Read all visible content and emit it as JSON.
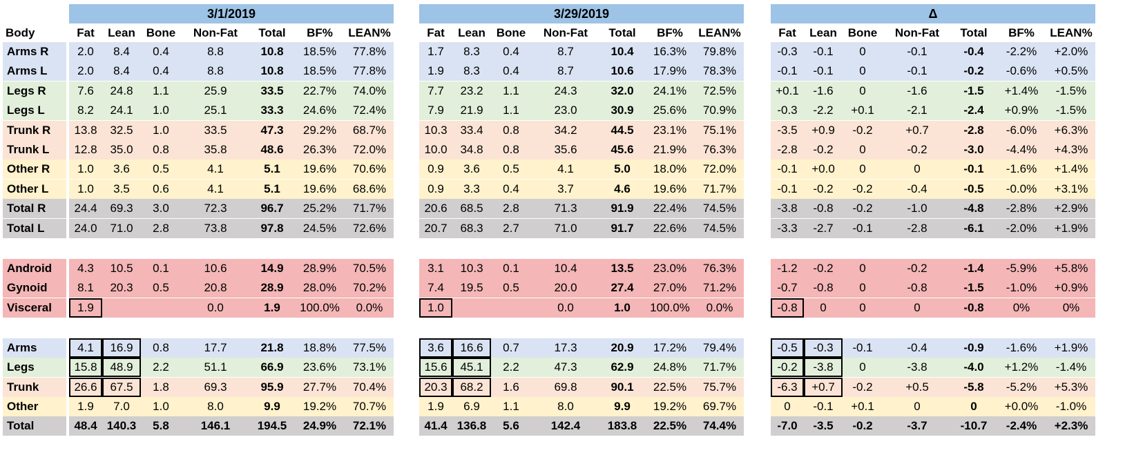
{
  "blocks": [
    {
      "title": "3/1/2019",
      "key": "d1"
    },
    {
      "title": "3/29/2019",
      "key": "d2"
    },
    {
      "title": "Δ",
      "key": "dd"
    }
  ],
  "body_label": "Body",
  "col_headers": [
    "Fat",
    "Lean",
    "Bone",
    "Non-Fat",
    "Total",
    "BF%",
    "LEAN%"
  ],
  "colors": {
    "header": "#9dc3e6",
    "arms": "#dae3f3",
    "legs": "#e2efda",
    "trunk": "#fbe4d5",
    "other": "#fff2cc",
    "total": "#d0cece",
    "red": "#f4b6b6"
  },
  "rows": [
    {
      "label": "Arms R",
      "color": "arms",
      "d1": [
        "2.0",
        "8.4",
        "0.4",
        "8.8",
        "10.8",
        "18.5%",
        "77.8%"
      ],
      "d2": [
        "1.7",
        "8.3",
        "0.4",
        "8.7",
        "10.4",
        "16.3%",
        "79.8%"
      ],
      "dd": [
        "-0.3",
        "-0.1",
        "0",
        "-0.1",
        "-0.4",
        "-2.2%",
        "+2.0%"
      ]
    },
    {
      "label": "Arms L",
      "color": "arms",
      "d1": [
        "2.0",
        "8.4",
        "0.4",
        "8.8",
        "10.8",
        "18.5%",
        "77.8%"
      ],
      "d2": [
        "1.9",
        "8.3",
        "0.4",
        "8.7",
        "10.6",
        "17.9%",
        "78.3%"
      ],
      "dd": [
        "-0.1",
        "-0.1",
        "0",
        "-0.1",
        "-0.2",
        "-0.6%",
        "+0.5%"
      ]
    },
    {
      "label": "Legs R",
      "color": "legs",
      "d1": [
        "7.6",
        "24.8",
        "1.1",
        "25.9",
        "33.5",
        "22.7%",
        "74.0%"
      ],
      "d2": [
        "7.7",
        "23.2",
        "1.1",
        "24.3",
        "32.0",
        "24.1%",
        "72.5%"
      ],
      "dd": [
        "+0.1",
        "-1.6",
        "0",
        "-1.6",
        "-1.5",
        "+1.4%",
        "-1.5%"
      ]
    },
    {
      "label": "Legs L",
      "color": "legs",
      "d1": [
        "8.2",
        "24.1",
        "1.0",
        "25.1",
        "33.3",
        "24.6%",
        "72.4%"
      ],
      "d2": [
        "7.9",
        "21.9",
        "1.1",
        "23.0",
        "30.9",
        "25.6%",
        "70.9%"
      ],
      "dd": [
        "-0.3",
        "-2.2",
        "+0.1",
        "-2.1",
        "-2.4",
        "+0.9%",
        "-1.5%"
      ]
    },
    {
      "label": "Trunk R",
      "color": "trunk",
      "d1": [
        "13.8",
        "32.5",
        "1.0",
        "33.5",
        "47.3",
        "29.2%",
        "68.7%"
      ],
      "d2": [
        "10.3",
        "33.4",
        "0.8",
        "34.2",
        "44.5",
        "23.1%",
        "75.1%"
      ],
      "dd": [
        "-3.5",
        "+0.9",
        "-0.2",
        "+0.7",
        "-2.8",
        "-6.0%",
        "+6.3%"
      ]
    },
    {
      "label": "Trunk L",
      "color": "trunk",
      "d1": [
        "12.8",
        "35.0",
        "0.8",
        "35.8",
        "48.6",
        "26.3%",
        "72.0%"
      ],
      "d2": [
        "10.0",
        "34.8",
        "0.8",
        "35.6",
        "45.6",
        "21.9%",
        "76.3%"
      ],
      "dd": [
        "-2.8",
        "-0.2",
        "0",
        "-0.2",
        "-3.0",
        "-4.4%",
        "+4.3%"
      ]
    },
    {
      "label": "Other R",
      "color": "other",
      "d1": [
        "1.0",
        "3.6",
        "0.5",
        "4.1",
        "5.1",
        "19.6%",
        "70.6%"
      ],
      "d2": [
        "0.9",
        "3.6",
        "0.5",
        "4.1",
        "5.0",
        "18.0%",
        "72.0%"
      ],
      "dd": [
        "-0.1",
        "+0.0",
        "0",
        "0",
        "-0.1",
        "-1.6%",
        "+1.4%"
      ]
    },
    {
      "label": "Other L",
      "color": "other",
      "d1": [
        "1.0",
        "3.5",
        "0.6",
        "4.1",
        "5.1",
        "19.6%",
        "68.6%"
      ],
      "d2": [
        "0.9",
        "3.3",
        "0.4",
        "3.7",
        "4.6",
        "19.6%",
        "71.7%"
      ],
      "dd": [
        "-0.1",
        "-0.2",
        "-0.2",
        "-0.4",
        "-0.5",
        "-0.0%",
        "+3.1%"
      ]
    },
    {
      "label": "Total R",
      "color": "total",
      "d1": [
        "24.4",
        "69.3",
        "3.0",
        "72.3",
        "96.7",
        "25.2%",
        "71.7%"
      ],
      "d2": [
        "20.6",
        "68.5",
        "2.8",
        "71.3",
        "91.9",
        "22.4%",
        "74.5%"
      ],
      "dd": [
        "-3.8",
        "-0.8",
        "-0.2",
        "-1.0",
        "-4.8",
        "-2.8%",
        "+2.9%"
      ]
    },
    {
      "label": "Total L",
      "color": "total",
      "d1": [
        "24.0",
        "71.0",
        "2.8",
        "73.8",
        "97.8",
        "24.5%",
        "72.6%"
      ],
      "d2": [
        "20.7",
        "68.3",
        "2.7",
        "71.0",
        "91.7",
        "22.6%",
        "74.5%"
      ],
      "dd": [
        "-3.3",
        "-2.7",
        "-0.1",
        "-2.8",
        "-6.1",
        "-2.0%",
        "+1.9%"
      ]
    },
    {
      "spacer": true
    },
    {
      "label": "Android",
      "color": "red",
      "d1": [
        "4.3",
        "10.5",
        "0.1",
        "10.6",
        "14.9",
        "28.9%",
        "70.5%"
      ],
      "d2": [
        "3.1",
        "10.3",
        "0.1",
        "10.4",
        "13.5",
        "23.0%",
        "76.3%"
      ],
      "dd": [
        "-1.2",
        "-0.2",
        "0",
        "-0.2",
        "-1.4",
        "-5.9%",
        "+5.8%"
      ]
    },
    {
      "label": "Gynoid",
      "color": "red",
      "d1": [
        "8.1",
        "20.3",
        "0.5",
        "20.8",
        "28.9",
        "28.0%",
        "70.2%"
      ],
      "d2": [
        "7.4",
        "19.5",
        "0.5",
        "20.0",
        "27.4",
        "27.0%",
        "71.2%"
      ],
      "dd": [
        "-0.7",
        "-0.8",
        "0",
        "-0.8",
        "-1.5",
        "-1.0%",
        "+0.9%"
      ]
    },
    {
      "label": "Visceral",
      "color": "red",
      "boxed": [
        0
      ],
      "d1": [
        "1.9",
        "",
        "",
        "0.0",
        "1.9",
        "100.0%",
        "0.0%"
      ],
      "d2": [
        "1.0",
        "",
        "",
        "0.0",
        "1.0",
        "100.0%",
        "0.0%"
      ],
      "dd": [
        "-0.8",
        "0",
        "0",
        "0",
        "-0.8",
        "0%",
        "0%"
      ]
    },
    {
      "spacer": true
    },
    {
      "label": "Arms",
      "color": "arms",
      "boxed": [
        0,
        1
      ],
      "d1": [
        "4.1",
        "16.9",
        "0.8",
        "17.7",
        "21.8",
        "18.8%",
        "77.5%"
      ],
      "d2": [
        "3.6",
        "16.6",
        "0.7",
        "17.3",
        "20.9",
        "17.2%",
        "79.4%"
      ],
      "dd": [
        "-0.5",
        "-0.3",
        "-0.1",
        "-0.4",
        "-0.9",
        "-1.6%",
        "+1.9%"
      ]
    },
    {
      "label": "Legs",
      "color": "legs",
      "boxed": [
        0,
        1
      ],
      "d1": [
        "15.8",
        "48.9",
        "2.2",
        "51.1",
        "66.9",
        "23.6%",
        "73.1%"
      ],
      "d2": [
        "15.6",
        "45.1",
        "2.2",
        "47.3",
        "62.9",
        "24.8%",
        "71.7%"
      ],
      "dd": [
        "-0.2",
        "-3.8",
        "0",
        "-3.8",
        "-4.0",
        "+1.2%",
        "-1.4%"
      ]
    },
    {
      "label": "Trunk",
      "color": "trunk",
      "boxed": [
        0,
        1
      ],
      "d1": [
        "26.6",
        "67.5",
        "1.8",
        "69.3",
        "95.9",
        "27.7%",
        "70.4%"
      ],
      "d2": [
        "20.3",
        "68.2",
        "1.6",
        "69.8",
        "90.1",
        "22.5%",
        "75.7%"
      ],
      "dd": [
        "-6.3",
        "+0.7",
        "-0.2",
        "+0.5",
        "-5.8",
        "-5.2%",
        "+5.3%"
      ]
    },
    {
      "label": "Other",
      "color": "other",
      "d1": [
        "1.9",
        "7.0",
        "1.0",
        "8.0",
        "9.9",
        "19.2%",
        "70.7%"
      ],
      "d2": [
        "1.9",
        "6.9",
        "1.1",
        "8.0",
        "9.9",
        "19.2%",
        "69.7%"
      ],
      "dd": [
        "0",
        "-0.1",
        "+0.1",
        "0",
        "0",
        "+0.0%",
        "-1.0%"
      ]
    },
    {
      "label": "Total",
      "color": "total",
      "all_bold": true,
      "d1": [
        "48.4",
        "140.3",
        "5.8",
        "146.1",
        "194.5",
        "24.9%",
        "72.1%"
      ],
      "d2": [
        "41.4",
        "136.8",
        "5.6",
        "142.4",
        "183.8",
        "22.5%",
        "74.4%"
      ],
      "dd": [
        "-7.0",
        "-3.5",
        "-0.2",
        "-3.7",
        "-10.7",
        "-2.4%",
        "+2.3%"
      ]
    }
  ]
}
